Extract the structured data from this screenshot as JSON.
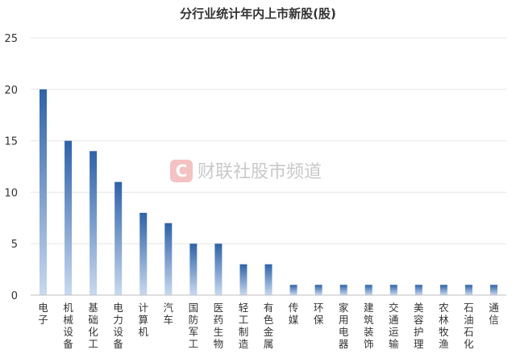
{
  "chart_data": {
    "type": "bar",
    "title": "分行业统计年内上市新股(股)",
    "xlabel": "",
    "ylabel": "",
    "ylim": [
      0,
      25
    ],
    "yticks": [
      0,
      5,
      10,
      15,
      20,
      25
    ],
    "grid": true,
    "legend": "none",
    "categories": [
      "电子",
      "机械设备",
      "基础化工",
      "电力设备",
      "计算机",
      "汽车",
      "国防军工",
      "医药生物",
      "轻工制造",
      "有色金属",
      "传媒",
      "环保",
      "家用电器",
      "建筑装饰",
      "交通运输",
      "美容护理",
      "农林牧渔",
      "石油石化",
      "通信"
    ],
    "values": [
      20,
      15,
      14,
      11,
      8,
      7,
      5,
      5,
      3,
      3,
      1,
      1,
      1,
      1,
      1,
      1,
      1,
      1,
      1
    ],
    "colors": {
      "bar_top": "#2e62a8",
      "bar_bottom": "#c9d9ef",
      "grid": "#e6e6e6",
      "axis": "#bfbfbf"
    }
  },
  "watermark": {
    "text": "财联社股市频道",
    "logo_letter": "C",
    "logo_color": "#f4c2c2"
  }
}
